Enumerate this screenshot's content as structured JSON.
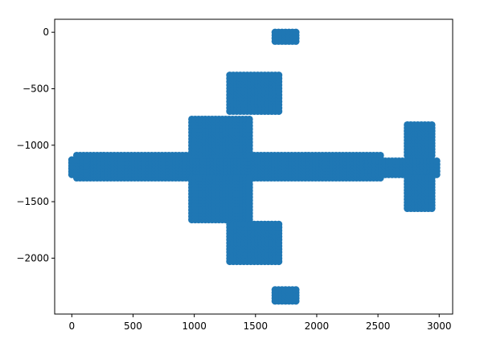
{
  "chart_data": {
    "type": "scatter",
    "title": "",
    "xlabel": "",
    "ylabel": "",
    "xlim": [
      -140,
      3110
    ],
    "ylim": [
      -2495,
      115
    ],
    "xticks": [
      0,
      500,
      1000,
      1500,
      2000,
      2500,
      3000
    ],
    "yticks": [
      0,
      -500,
      -1000,
      -1500,
      -2000
    ],
    "xtick_labels": [
      "0",
      "500",
      "1000",
      "1500",
      "2000",
      "2500",
      "3000"
    ],
    "ytick_labels": [
      "0",
      "−500",
      "−1000",
      "−1500",
      "−2000"
    ],
    "grid": false,
    "legend": "none",
    "series": [
      {
        "color": "#1f77b4",
        "marker": "circle",
        "regions": [
          {
            "part": "fuselage",
            "x_range": [
              40,
              2520
            ],
            "y_range": [
              -1290,
              -1090
            ]
          },
          {
            "part": "nose",
            "x_range": [
              0,
              120
            ],
            "y_range": [
              -1260,
              -1130
            ]
          },
          {
            "part": "tail-cone",
            "x_range": [
              2420,
              2980
            ],
            "y_range": [
              -1260,
              -1140
            ]
          },
          {
            "part": "left-wing-root",
            "x_range": [
              980,
              1450
            ],
            "y_range": [
              -1660,
              -1290
            ]
          },
          {
            "part": "right-wing-root",
            "x_range": [
              980,
              1450
            ],
            "y_range": [
              -1090,
              -770
            ]
          },
          {
            "part": "left-wing-mid",
            "x_range": [
              1290,
              1690
            ],
            "y_range": [
              -2030,
              -1700
            ]
          },
          {
            "part": "right-wing-mid",
            "x_range": [
              1290,
              1690
            ],
            "y_range": [
              -700,
              -380
            ]
          },
          {
            "part": "left-wingtip",
            "x_range": [
              1660,
              1830
            ],
            "y_range": [
              -2380,
              -2280
            ]
          },
          {
            "part": "right-wingtip",
            "x_range": [
              1660,
              1830
            ],
            "y_range": [
              -80,
              0
            ]
          },
          {
            "part": "left-stabilizer",
            "x_range": [
              2740,
              2940
            ],
            "y_range": [
              -1560,
              -1290
            ]
          },
          {
            "part": "right-stabilizer",
            "x_range": [
              2740,
              2940
            ],
            "y_range": [
              -1090,
              -820
            ]
          }
        ]
      }
    ]
  }
}
